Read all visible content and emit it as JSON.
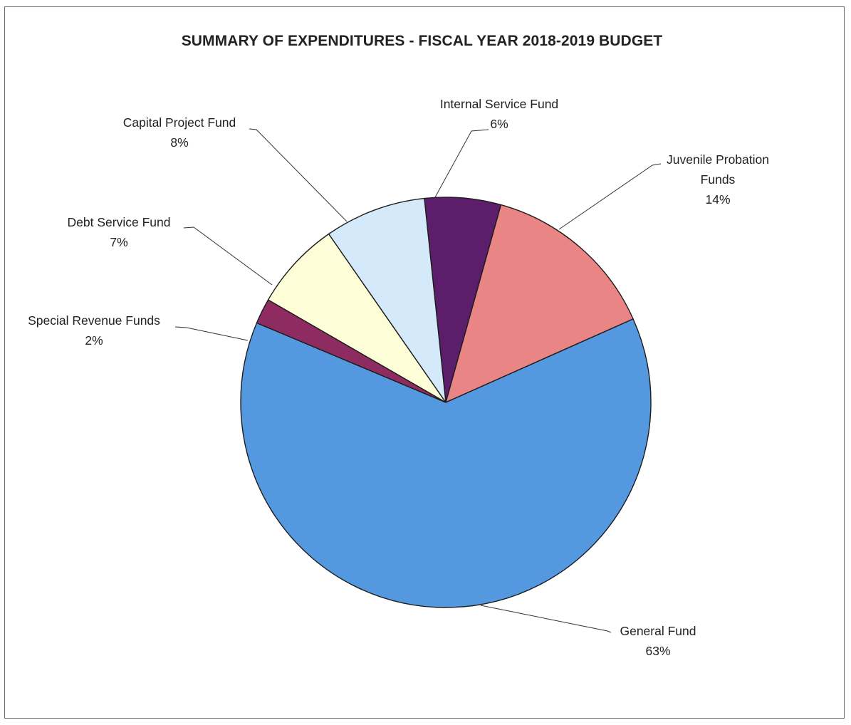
{
  "chart_data": {
    "type": "pie",
    "title": "SUMMARY OF EXPENDITURES - FISCAL YEAR 2018-2019 BUDGET",
    "slices": [
      {
        "label": "Internal Service Fund",
        "label_lines": [
          "Internal Service Fund"
        ],
        "percent_label": "6%",
        "value": 6,
        "color": "#5c1d6b"
      },
      {
        "label": "Juvenile Probation Funds",
        "label_lines": [
          "Juvenile Probation",
          "Funds"
        ],
        "percent_label": "14%",
        "value": 14,
        "color": "#ea8585"
      },
      {
        "label": "General Fund",
        "label_lines": [
          "General Fund"
        ],
        "percent_label": "63%",
        "value": 63,
        "color": "#5499e0"
      },
      {
        "label": "Special Revenue Funds",
        "label_lines": [
          "Special Revenue Funds"
        ],
        "percent_label": "2%",
        "value": 2,
        "color": "#8e2c62"
      },
      {
        "label": "Debt Service Fund",
        "label_lines": [
          "Debt Service Fund"
        ],
        "percent_label": "7%",
        "value": 7,
        "color": "#fdfdd8"
      },
      {
        "label": "Capital Project Fund",
        "label_lines": [
          "Capital Project Fund"
        ],
        "percent_label": "8%",
        "value": 8,
        "color": "#d4e9f9"
      }
    ],
    "start_angle_deg": -6,
    "direction": "clockwise",
    "legend": "none"
  }
}
